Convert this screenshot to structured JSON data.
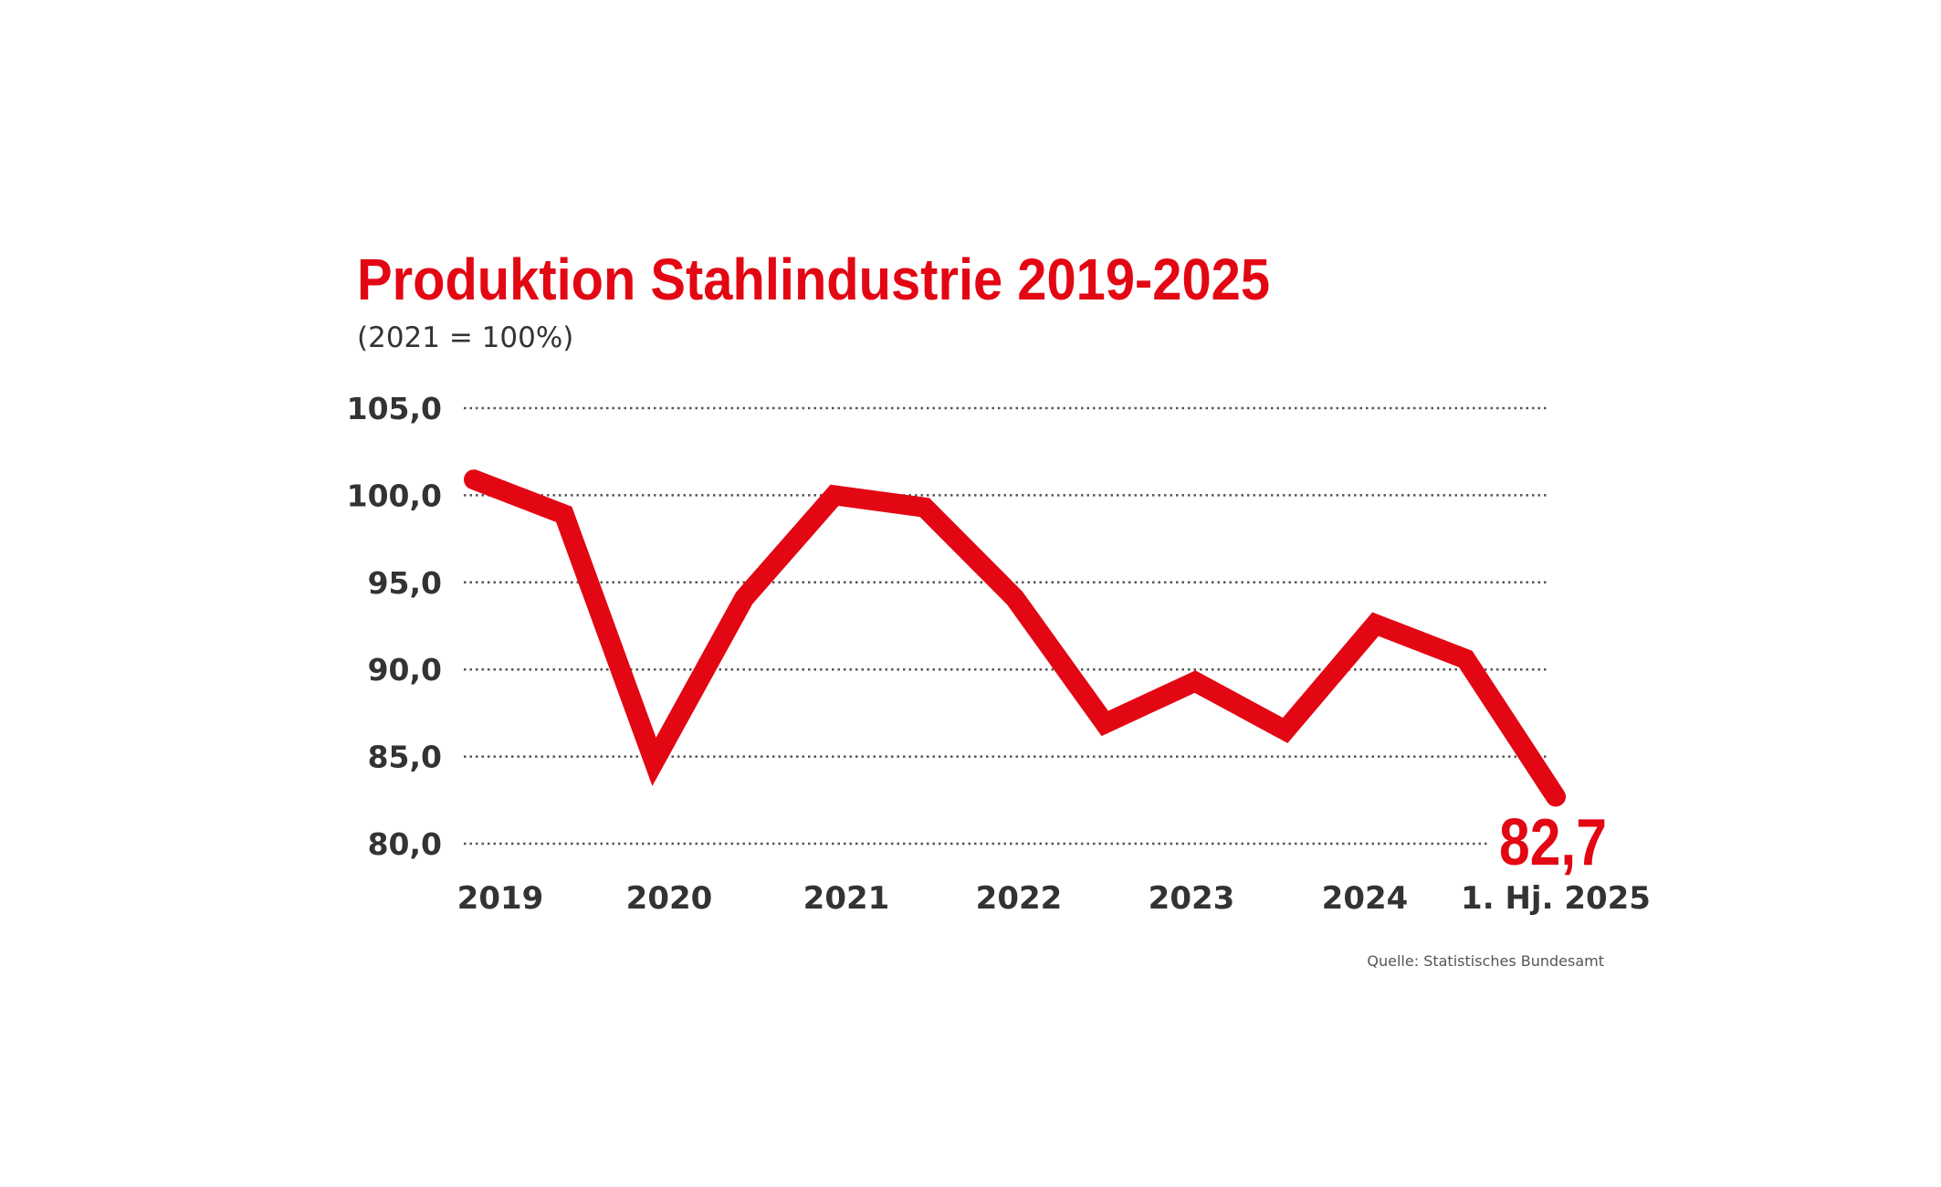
{
  "chart_data": {
    "type": "line",
    "title": "Produktion Stahlindustrie 2019-2025",
    "subtitle": "(2021 = 100%)",
    "x_tick_labels": [
      "2019",
      "2020",
      "2021",
      "2022",
      "2023",
      "2024",
      "1. Hj. 2025"
    ],
    "y_tick_labels": [
      "105,0",
      "100,0",
      "95,0",
      "90,0",
      "85,0",
      "80,0"
    ],
    "y_ticks": [
      105,
      100,
      95,
      90,
      85,
      80
    ],
    "ylim": [
      80,
      105
    ],
    "values": [
      100.9,
      98.9,
      84.7,
      94.1,
      100.0,
      99.3,
      94.1,
      86.9,
      89.3,
      86.5,
      92.6,
      90.6,
      82.7
    ],
    "last_value_label": "82,7",
    "source": "Quelle: Statistisches Bundesamt",
    "grid": "horizontal dotted",
    "color": "#e30613"
  }
}
